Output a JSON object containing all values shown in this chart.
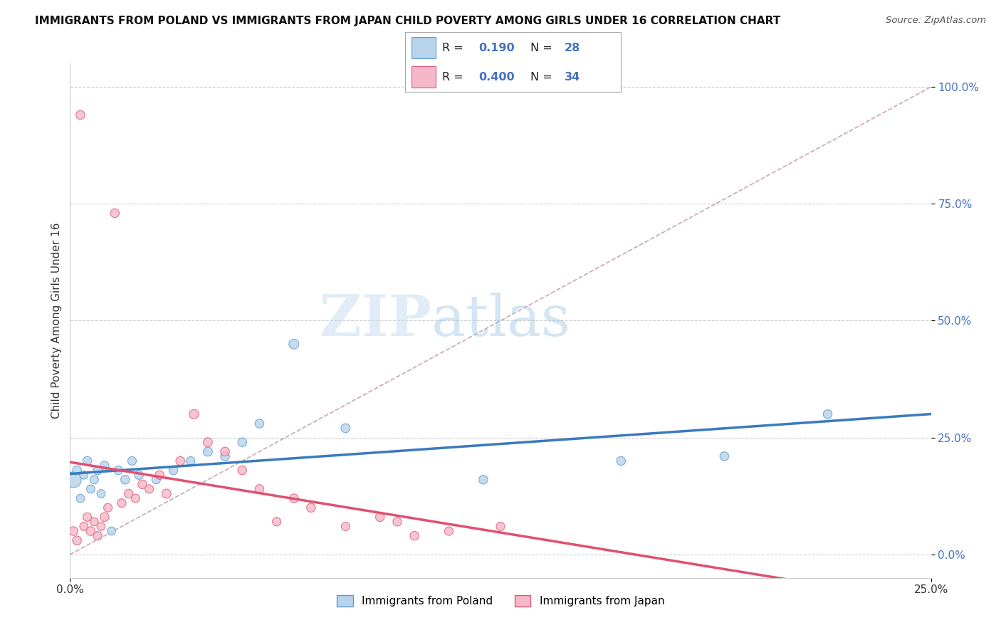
{
  "title": "IMMIGRANTS FROM POLAND VS IMMIGRANTS FROM JAPAN CHILD POVERTY AMONG GIRLS UNDER 16 CORRELATION CHART",
  "source": "Source: ZipAtlas.com",
  "ylabel": "Child Poverty Among Girls Under 16",
  "xlim": [
    0.0,
    0.25
  ],
  "ylim": [
    -0.05,
    1.05
  ],
  "ytick_positions": [
    0.0,
    0.25,
    0.5,
    0.75,
    1.0
  ],
  "ytick_labels": [
    "0.0%",
    "25.0%",
    "50.0%",
    "75.0%",
    "100.0%"
  ],
  "xtick_positions": [
    0.0,
    0.25
  ],
  "xtick_labels": [
    "0.0%",
    "25.0%"
  ],
  "legend_label1": "Immigrants from Poland",
  "legend_label2": "Immigrants from Japan",
  "R1": 0.19,
  "N1": 28,
  "R2": 0.4,
  "N2": 34,
  "color_poland_fill": "#b8d4ea",
  "color_japan_fill": "#f5b8c8",
  "color_poland_edge": "#5b9bd5",
  "color_japan_edge": "#e05878",
  "color_diag": "#c8a8b0",
  "color_poland_line": "#3a7abf",
  "color_japan_line": "#e05070",
  "watermark_zip": "ZIP",
  "watermark_atlas": "atlas",
  "poland_x": [
    0.001,
    0.002,
    0.003,
    0.004,
    0.005,
    0.006,
    0.007,
    0.008,
    0.009,
    0.01,
    0.012,
    0.014,
    0.016,
    0.018,
    0.02,
    0.025,
    0.03,
    0.035,
    0.04,
    0.045,
    0.05,
    0.055,
    0.065,
    0.08,
    0.12,
    0.16,
    0.19,
    0.22
  ],
  "poland_y": [
    0.16,
    0.18,
    0.12,
    0.17,
    0.2,
    0.14,
    0.16,
    0.18,
    0.13,
    0.19,
    0.05,
    0.18,
    0.16,
    0.2,
    0.17,
    0.16,
    0.18,
    0.2,
    0.22,
    0.21,
    0.24,
    0.28,
    0.45,
    0.27,
    0.16,
    0.2,
    0.21,
    0.3
  ],
  "japan_x": [
    0.001,
    0.002,
    0.003,
    0.004,
    0.005,
    0.006,
    0.007,
    0.008,
    0.009,
    0.01,
    0.011,
    0.013,
    0.015,
    0.017,
    0.019,
    0.021,
    0.023,
    0.026,
    0.028,
    0.032,
    0.036,
    0.04,
    0.045,
    0.05,
    0.055,
    0.06,
    0.065,
    0.07,
    0.08,
    0.09,
    0.095,
    0.1,
    0.11,
    0.125
  ],
  "japan_y": [
    0.05,
    0.03,
    0.94,
    0.06,
    0.08,
    0.05,
    0.07,
    0.04,
    0.06,
    0.08,
    0.1,
    0.73,
    0.11,
    0.13,
    0.12,
    0.15,
    0.14,
    0.17,
    0.13,
    0.2,
    0.3,
    0.24,
    0.22,
    0.18,
    0.14,
    0.07,
    0.12,
    0.1,
    0.06,
    0.08,
    0.07,
    0.04,
    0.05,
    0.06
  ],
  "poland_sizes": [
    250,
    80,
    70,
    70,
    80,
    70,
    75,
    80,
    70,
    80,
    70,
    75,
    80,
    75,
    80,
    75,
    80,
    75,
    85,
    80,
    80,
    80,
    100,
    85,
    80,
    80,
    80,
    80
  ],
  "japan_sizes": [
    80,
    80,
    80,
    70,
    75,
    80,
    70,
    75,
    70,
    80,
    75,
    80,
    75,
    80,
    75,
    80,
    75,
    80,
    85,
    80,
    90,
    85,
    80,
    80,
    80,
    75,
    80,
    80,
    75,
    80,
    75,
    80,
    75,
    75
  ]
}
